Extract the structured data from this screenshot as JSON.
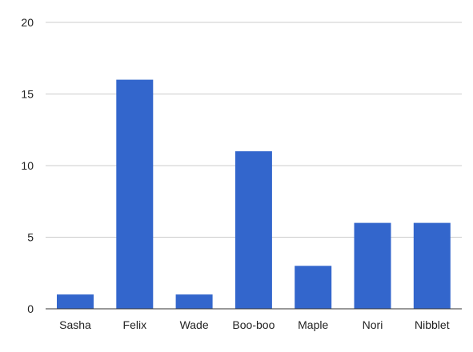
{
  "chart_data": {
    "type": "bar",
    "categories": [
      "Sasha",
      "Felix",
      "Wade",
      "Boo-boo",
      "Maple",
      "Nori",
      "Nibblet"
    ],
    "values": [
      1,
      16,
      1,
      11,
      3,
      6,
      6
    ],
    "yticks": [
      0,
      5,
      10,
      15,
      20
    ],
    "ylim": [
      0,
      20
    ],
    "grid": true,
    "bar_color": "#3366cc",
    "grid_color": "#cccccc",
    "baseline_color": "#333333",
    "text_color": "#222222"
  }
}
